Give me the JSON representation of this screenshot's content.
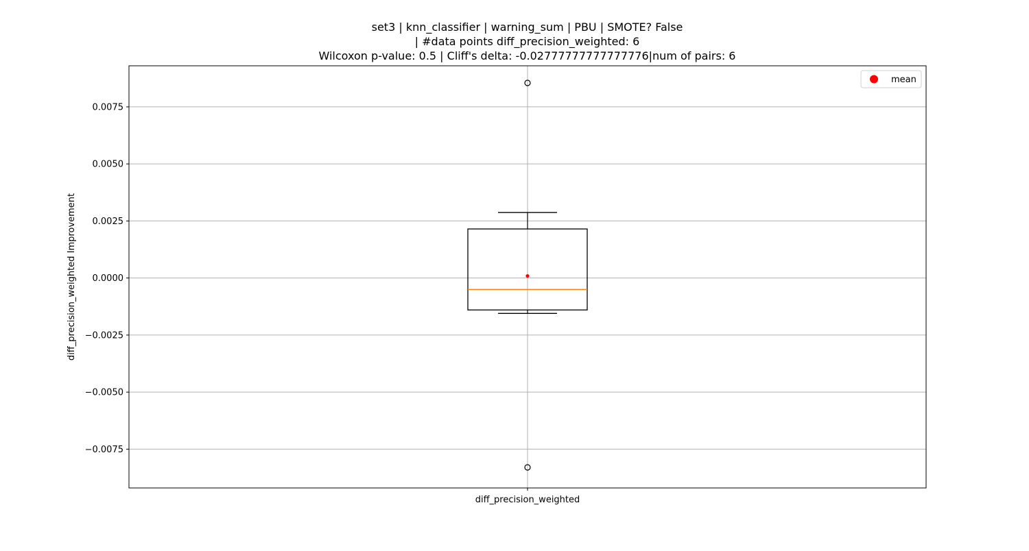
{
  "chart_data": {
    "type": "boxplot",
    "title": [
      "set3 | knn_classifier | warning_sum | PBU | SMOTE? False",
      "| #data points diff_precision_weighted: 6",
      "Wilcoxon p-value: 0.5 | Cliff's delta: -0.02777777777777776|num of pairs: 6"
    ],
    "xlabel": "",
    "ylabel": "diff_precision_weighted Improvement",
    "categories": [
      "diff_precision_weighted"
    ],
    "ylim": [
      -0.0092,
      0.0093
    ],
    "yticks": [
      -0.0075,
      -0.005,
      -0.0025,
      0.0,
      0.0025,
      0.005,
      0.0075
    ],
    "ytick_labels": [
      "−0.0075",
      "−0.0050",
      "−0.0025",
      "0.0000",
      "0.0025",
      "0.0050",
      "0.0075"
    ],
    "grid": true,
    "legend": {
      "placement": "top-right",
      "entries": [
        {
          "label": "mean",
          "color": "#ff0000",
          "marker": "circle"
        }
      ]
    },
    "boxes": [
      {
        "name": "diff_precision_weighted",
        "whisker_low": -0.00155,
        "q1": -0.0014,
        "median": -0.0005,
        "q3": 0.00215,
        "whisker_high": 0.00287,
        "mean": 9e-05,
        "outliers": [
          0.00855,
          -0.0083
        ]
      }
    ],
    "colors": {
      "box": "#000000",
      "median": "#ff7f0e",
      "mean": "#ff0000",
      "grid": "#b0b0b0"
    }
  }
}
